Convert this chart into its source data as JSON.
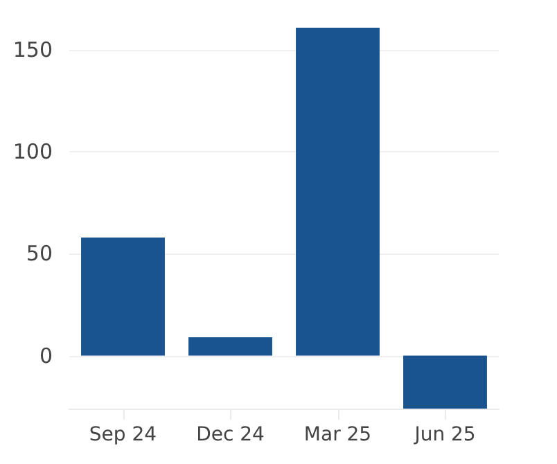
{
  "chart_data": {
    "type": "bar",
    "categories": [
      "Sep 24",
      "Dec 24",
      "Mar 25",
      "Jun 25"
    ],
    "values": [
      58,
      9,
      161,
      -26
    ],
    "color": "#1a5490",
    "ylim": [
      -26,
      161
    ],
    "yticks": [
      0,
      50,
      100,
      150
    ],
    "grid": "y"
  }
}
